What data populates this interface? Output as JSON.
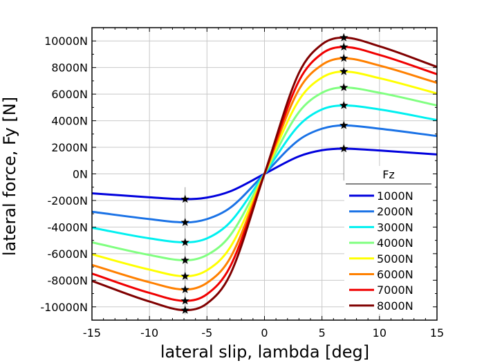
{
  "chart_data": {
    "type": "line",
    "title": "",
    "xlabel": "lateral slip, lambda [deg]",
    "ylabel": "lateral force, Fy [N]",
    "xlim": [
      -15,
      15
    ],
    "ylim": [
      -11000,
      11000
    ],
    "x_ticks": [
      -15,
      -10,
      -5,
      0,
      5,
      10,
      15
    ],
    "y_ticks": [
      -10000,
      -8000,
      -6000,
      -4000,
      -2000,
      0,
      2000,
      4000,
      6000,
      8000,
      10000
    ],
    "y_tick_labels": [
      "-10000N",
      "-8000N",
      "-6000N",
      "-4000N",
      "-2000N",
      "0N",
      "2000N",
      "4000N",
      "6000N",
      "8000N",
      "10000N"
    ],
    "grid": true,
    "legend": {
      "title": "Fz",
      "position": "lower-right"
    },
    "peak_marker": "star",
    "peak_x": 6.9,
    "series": [
      {
        "name": "1000N",
        "color": "#0000dd",
        "x": [
          -15,
          -10,
          -6.9,
          -5,
          -3,
          0,
          3,
          5,
          6.9,
          10,
          15
        ],
        "y": [
          -1460,
          -1760,
          -1900,
          -1780,
          -1320,
          0,
          1320,
          1780,
          1900,
          1760,
          1460
        ]
      },
      {
        "name": "2000N",
        "color": "#1a72e6",
        "x": [
          -15,
          -10,
          -6.9,
          -5,
          -3,
          0,
          3,
          5,
          6.9,
          10,
          15
        ],
        "y": [
          -2850,
          -3400,
          -3650,
          -3400,
          -2560,
          0,
          2560,
          3400,
          3650,
          3400,
          2850
        ]
      },
      {
        "name": "3000N",
        "color": "#00f0f0",
        "x": [
          -15,
          -10,
          -6.9,
          -5,
          -3,
          0,
          3,
          5,
          6.9,
          10,
          15
        ],
        "y": [
          -4050,
          -4850,
          -5150,
          -4850,
          -3650,
          0,
          3650,
          4850,
          5150,
          4850,
          4050
        ]
      },
      {
        "name": "4000N",
        "color": "#80ff80",
        "x": [
          -15,
          -10,
          -6.9,
          -5,
          -3,
          0,
          3,
          5,
          6.9,
          10,
          15
        ],
        "y": [
          -5150,
          -6100,
          -6500,
          -6100,
          -4650,
          0,
          4650,
          6100,
          6500,
          6100,
          5150
        ]
      },
      {
        "name": "5000N",
        "color": "#ffff00",
        "x": [
          -15,
          -10,
          -6.9,
          -5,
          -3,
          0,
          3,
          5,
          6.9,
          10,
          15
        ],
        "y": [
          -6050,
          -7200,
          -7700,
          -7250,
          -5550,
          0,
          5550,
          7250,
          7700,
          7200,
          6050
        ]
      },
      {
        "name": "6000N",
        "color": "#ff8000",
        "x": [
          -15,
          -10,
          -6.9,
          -5,
          -3,
          0,
          3,
          5,
          6.9,
          10,
          15
        ],
        "y": [
          -6850,
          -8150,
          -8700,
          -8200,
          -6350,
          0,
          6350,
          8200,
          8700,
          8150,
          6850
        ]
      },
      {
        "name": "7000N",
        "color": "#f00000",
        "x": [
          -15,
          -10,
          -6.9,
          -5,
          -3,
          0,
          3,
          5,
          6.9,
          10,
          15
        ],
        "y": [
          -7500,
          -8950,
          -9550,
          -9050,
          -7000,
          0,
          7000,
          9050,
          9550,
          8950,
          7500
        ]
      },
      {
        "name": "8000N",
        "color": "#800000",
        "x": [
          -15,
          -10,
          -6.9,
          -5,
          -3,
          0,
          3,
          5,
          6.9,
          10,
          15
        ],
        "y": [
          -8050,
          -9600,
          -10250,
          -9750,
          -7600,
          0,
          7600,
          9750,
          10250,
          9600,
          8050
        ]
      }
    ]
  }
}
